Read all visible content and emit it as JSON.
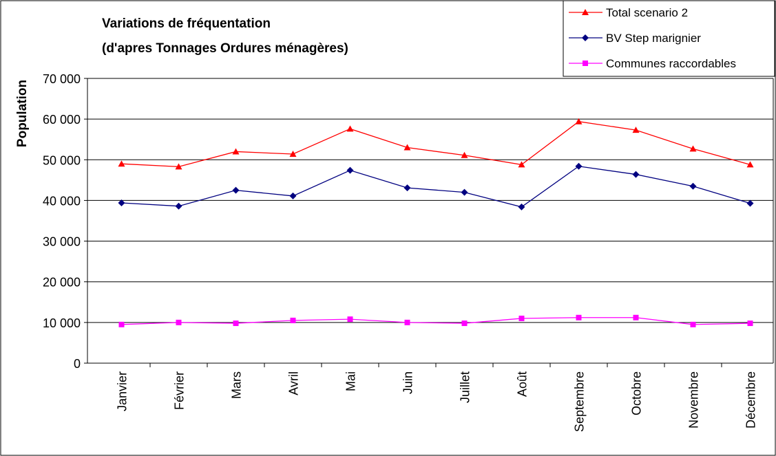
{
  "chart_data": {
    "type": "line",
    "title": [
      "Variations de fréquentation",
      "(d'apres Tonnages Ordures ménagères)"
    ],
    "y_label": "Population",
    "categories": [
      "Janvier",
      "Février",
      "Mars",
      "Avril",
      "Mai",
      "Juin",
      "Juillet",
      "Août",
      "Septembre",
      "Octobre",
      "Novembre",
      "Décembre"
    ],
    "series": [
      {
        "name": "Total scenario 2",
        "color": "#ff0000",
        "marker": "triangle",
        "values": [
          49000,
          48300,
          52000,
          51400,
          57600,
          53000,
          51100,
          48800,
          59400,
          57300,
          52700,
          48800
        ]
      },
      {
        "name": "BV Step marignier",
        "color": "#000080",
        "marker": "diamond",
        "values": [
          39400,
          38600,
          42500,
          41100,
          47400,
          43100,
          42000,
          38400,
          48400,
          46400,
          43500,
          39300
        ]
      },
      {
        "name": "Communes raccordables",
        "color": "#ff00ff",
        "marker": "square",
        "values": [
          9500,
          10000,
          9800,
          10500,
          10800,
          10000,
          9800,
          11000,
          11200,
          11200,
          9500,
          9800
        ]
      }
    ],
    "ylim": [
      0,
      70000
    ],
    "yticks": [
      0,
      {
        "value": 10000,
        "label": "10 000"
      },
      {
        "value": 20000,
        "label": "20 000"
      },
      {
        "value": 30000,
        "label": "30 000"
      },
      {
        "value": 40000,
        "label": "40 000"
      },
      {
        "value": 50000,
        "label": "50 000"
      },
      {
        "value": 60000,
        "label": "60 000"
      },
      {
        "value": 70000,
        "label": "70 000"
      }
    ],
    "grid": true,
    "legend": "top-right"
  }
}
